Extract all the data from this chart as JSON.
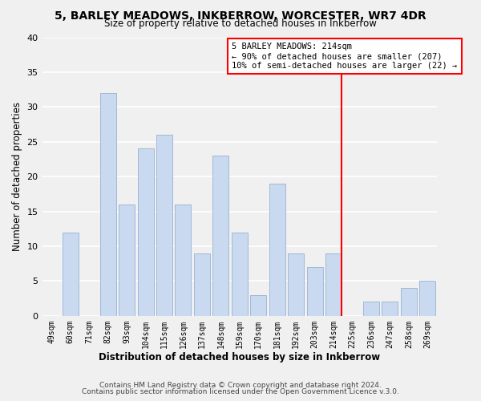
{
  "title": "5, BARLEY MEADOWS, INKBERROW, WORCESTER, WR7 4DR",
  "subtitle": "Size of property relative to detached houses in Inkberrow",
  "xlabel": "Distribution of detached houses by size in Inkberrow",
  "ylabel": "Number of detached properties",
  "bin_labels": [
    "49sqm",
    "60sqm",
    "71sqm",
    "82sqm",
    "93sqm",
    "104sqm",
    "115sqm",
    "126sqm",
    "137sqm",
    "148sqm",
    "159sqm",
    "170sqm",
    "181sqm",
    "192sqm",
    "203sqm",
    "214sqm",
    "225sqm",
    "236sqm",
    "247sqm",
    "258sqm",
    "269sqm"
  ],
  "bar_values": [
    0,
    12,
    0,
    32,
    16,
    24,
    26,
    16,
    9,
    23,
    12,
    3,
    19,
    9,
    7,
    9,
    0,
    2,
    2,
    4,
    5
  ],
  "bar_color": "#c9d9f0",
  "bar_edge_color": "#a0b8d8",
  "vline_color": "red",
  "vline_idx": 15,
  "annotation_title": "5 BARLEY MEADOWS: 214sqm",
  "annotation_line1": "← 90% of detached houses are smaller (207)",
  "annotation_line2": "10% of semi-detached houses are larger (22) →",
  "annotation_box_color": "white",
  "annotation_box_edge": "red",
  "ylim": [
    0,
    40
  ],
  "yticks": [
    0,
    5,
    10,
    15,
    20,
    25,
    30,
    35,
    40
  ],
  "footer1": "Contains HM Land Registry data © Crown copyright and database right 2024.",
  "footer2": "Contains public sector information licensed under the Open Government Licence v.3.0.",
  "bg_color": "#f0f0f0",
  "plot_bg_color": "#f0f0f0"
}
